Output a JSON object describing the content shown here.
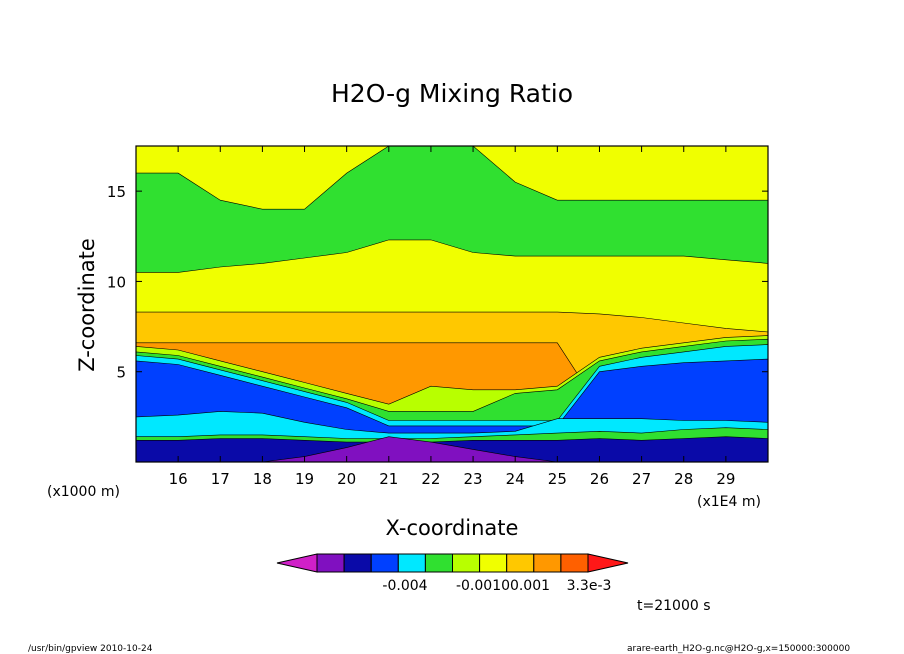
{
  "chart_data": {
    "type": "heatmap",
    "title": "H2O-g Mixing Ratio",
    "xlabel": "X-coordinate",
    "ylabel": "Z-coordinate",
    "x_unit": "(x1E4 m)",
    "y_unit": "(x1000 m)",
    "x_ticks": [
      16,
      17,
      18,
      19,
      20,
      21,
      22,
      23,
      24,
      25,
      26,
      27,
      28,
      29
    ],
    "y_ticks": [
      5,
      10,
      15
    ],
    "xlim": [
      15.0,
      30.0
    ],
    "ylim": [
      0.0,
      17.5
    ],
    "colorbar": {
      "colors": [
        "#d020c8",
        "#8010c0",
        "#0a0aa8",
        "#0040ff",
        "#00e8ff",
        "#30e030",
        "#b8ff00",
        "#f0ff00",
        "#ffc800",
        "#ff9800",
        "#ff6000",
        "#ff1818"
      ],
      "labels": [
        "-0.004",
        "-0.0010",
        "0.001",
        "3.3e-3"
      ]
    },
    "time_label": "t=21000 s",
    "layers": [
      {
        "color": "#f0ff00",
        "z_top": [
          17.5,
          17.5,
          17.5,
          17.5,
          17.5,
          17.5,
          17.5,
          17.5,
          17.5,
          17.5,
          17.5,
          17.5,
          17.5,
          17.5,
          17.5,
          17.5
        ]
      },
      {
        "color": "#30e030",
        "z_top": [
          16.0,
          16.0,
          14.5,
          14.0,
          14.0,
          16.0,
          17.5,
          17.5,
          17.5,
          15.5,
          14.5,
          14.5,
          14.5,
          14.5,
          14.5,
          14.5
        ]
      },
      {
        "color": "#f0ff00",
        "z_top": [
          10.5,
          10.5,
          10.8,
          11.0,
          11.3,
          11.6,
          12.3,
          12.3,
          11.6,
          11.4,
          11.4,
          11.4,
          11.4,
          11.4,
          11.2,
          11.0
        ]
      },
      {
        "color": "#ffc800",
        "z_top": [
          8.3,
          8.3,
          8.3,
          8.3,
          8.3,
          8.3,
          8.3,
          8.3,
          8.3,
          8.3,
          8.3,
          8.2,
          8.0,
          7.7,
          7.4,
          7.2
        ]
      },
      {
        "color": "#ff9800",
        "z_top": [
          6.6,
          6.6,
          6.6,
          6.6,
          6.6,
          6.6,
          6.6,
          6.6,
          6.6,
          6.6,
          6.6,
          3.0,
          3.0,
          3.0,
          3.0,
          3.0
        ]
      },
      {
        "color": "#b8ff00",
        "z_top": [
          6.4,
          6.2,
          5.6,
          5.0,
          4.4,
          3.8,
          3.2,
          4.2,
          4.0,
          4.0,
          4.2,
          5.8,
          6.3,
          6.6,
          6.9,
          7.0
        ]
      },
      {
        "color": "#30e030",
        "z_top": [
          6.1,
          5.9,
          5.3,
          4.7,
          4.1,
          3.5,
          2.8,
          2.8,
          2.8,
          3.8,
          4.0,
          5.6,
          6.1,
          6.4,
          6.7,
          6.8
        ]
      },
      {
        "color": "#00e8ff",
        "z_top": [
          5.9,
          5.7,
          5.1,
          4.5,
          3.9,
          3.3,
          2.3,
          2.3,
          2.3,
          2.3,
          2.3,
          5.3,
          5.8,
          6.1,
          6.4,
          6.5
        ]
      },
      {
        "color": "#0040ff",
        "z_top": [
          5.6,
          5.4,
          4.8,
          4.2,
          3.6,
          3.0,
          2.0,
          2.0,
          2.0,
          2.0,
          2.0,
          5.0,
          5.3,
          5.5,
          5.6,
          5.7
        ]
      },
      {
        "color": "#00e8ff",
        "z_top": [
          2.5,
          2.6,
          2.8,
          2.7,
          2.2,
          1.8,
          1.6,
          1.6,
          1.6,
          1.7,
          2.4,
          2.4,
          2.4,
          2.3,
          2.3,
          2.2
        ]
      },
      {
        "color": "#30e030",
        "z_top": [
          1.4,
          1.4,
          1.5,
          1.5,
          1.4,
          1.3,
          1.3,
          1.3,
          1.4,
          1.5,
          1.6,
          1.7,
          1.6,
          1.8,
          1.9,
          1.8
        ]
      },
      {
        "color": "#0a0aa8",
        "z_top": [
          1.2,
          1.2,
          1.3,
          1.3,
          1.2,
          1.1,
          1.1,
          1.1,
          1.2,
          1.2,
          1.2,
          1.3,
          1.2,
          1.3,
          1.4,
          1.3
        ]
      },
      {
        "color": "#8010c0",
        "z_top": [
          0.0,
          0.0,
          0.0,
          0.0,
          0.3,
          0.8,
          1.4,
          1.1,
          0.7,
          0.3,
          0.0,
          0.0,
          0.0,
          0.0,
          0.0,
          0.0
        ]
      }
    ],
    "grid": false,
    "legend": "bottom"
  },
  "footer": {
    "left": "/usr/bin/gpview   2010-10-24",
    "right": "arare-earth_H2O-g.nc@H2O-g,x=150000:300000"
  }
}
